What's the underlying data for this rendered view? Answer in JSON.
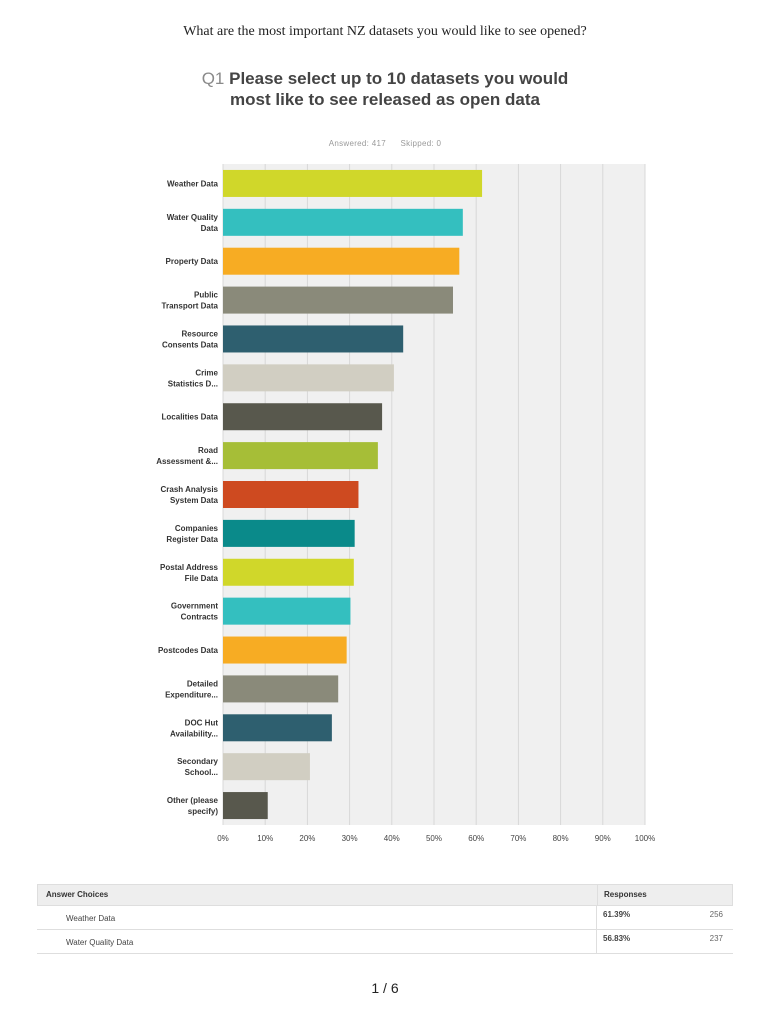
{
  "header": {
    "title": "What are the most important NZ datasets you would like to see opened?"
  },
  "question": {
    "number": "Q1",
    "text": "Please select up to 10 datasets you would most like to see released as open data",
    "answered": "Answered: 417",
    "skipped": "Skipped: 0"
  },
  "chart_data": {
    "type": "bar",
    "orientation": "horizontal",
    "categories": [
      [
        "Weather Data"
      ],
      [
        "Water Quality",
        "Data"
      ],
      [
        "Property Data"
      ],
      [
        "Public",
        "Transport Data"
      ],
      [
        "Resource",
        "Consents Data"
      ],
      [
        "Crime",
        "Statistics D..."
      ],
      [
        "Localities Data"
      ],
      [
        "Road",
        "Assessment &..."
      ],
      [
        "Crash Analysis",
        "System Data"
      ],
      [
        "Companies",
        "Register Data"
      ],
      [
        "Postal Address",
        "File Data"
      ],
      [
        "Government",
        "Contracts"
      ],
      [
        "Postcodes Data"
      ],
      [
        "Detailed",
        "Expenditure..."
      ],
      [
        "DOC Hut",
        "Availability..."
      ],
      [
        "Secondary",
        "School..."
      ],
      [
        "Other (please",
        "specify)"
      ]
    ],
    "values": [
      61.39,
      56.83,
      56.0,
      54.5,
      42.7,
      40.5,
      37.7,
      36.7,
      32.1,
      31.2,
      31.0,
      30.2,
      29.3,
      27.3,
      25.8,
      20.6,
      10.6
    ],
    "colors": [
      "#d0d72a",
      "#34bfbf",
      "#f7ac23",
      "#8a8a7a",
      "#2e5f6f",
      "#d1cec2",
      "#58584d",
      "#a6be37",
      "#ce4a20",
      "#0a8a8a",
      "#d0d72a",
      "#34bfbf",
      "#f7ac23",
      "#8a8a7a",
      "#2e5f6f",
      "#d1cec2",
      "#58584d"
    ],
    "xticks": [
      "0%",
      "10%",
      "20%",
      "30%",
      "40%",
      "50%",
      "60%",
      "70%",
      "80%",
      "90%",
      "100%"
    ],
    "xlim": [
      0,
      100
    ],
    "grid": true
  },
  "table": {
    "headers": [
      "Answer Choices",
      "Responses"
    ],
    "rows": [
      {
        "choice": "Weather Data",
        "percent": "61.39%",
        "count": "256"
      },
      {
        "choice": "Water Quality Data",
        "percent": "56.83%",
        "count": "237"
      }
    ]
  },
  "footer": {
    "page": "1 / 6"
  }
}
